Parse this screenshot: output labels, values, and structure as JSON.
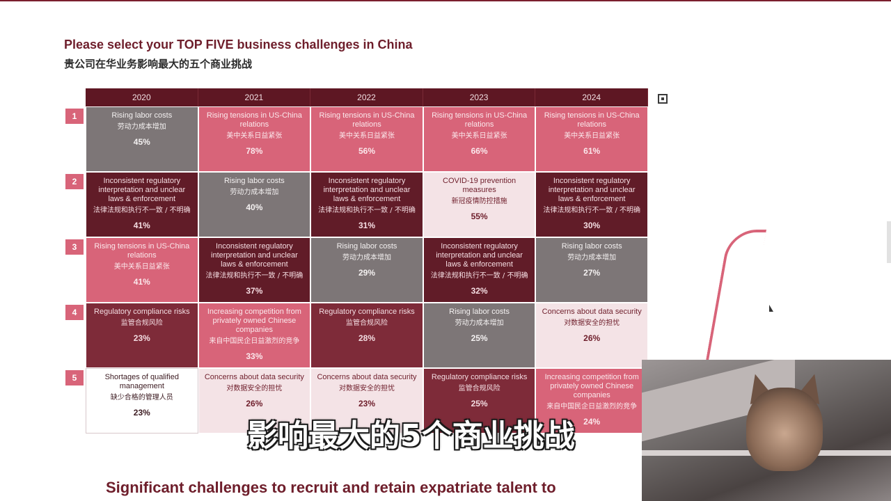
{
  "slide": {
    "title": "Please select your TOP FIVE business challenges in China",
    "subtitle": "贵公司在华业务影响最大的五个商业挑战",
    "years": [
      "2020",
      "2021",
      "2022",
      "2023",
      "2024"
    ],
    "ranks": [
      "1",
      "2",
      "3",
      "4",
      "5"
    ],
    "rows": [
      [
        {
          "en": "Rising labor costs",
          "zh": "劳动力成本增加",
          "pct": "45%",
          "tone": "gray"
        },
        {
          "en": "Rising tensions in US-China relations",
          "zh": "美中关系日益紧张",
          "pct": "78%",
          "tone": "pink"
        },
        {
          "en": "Rising tensions in US-China relations",
          "zh": "美中关系日益紧张",
          "pct": "56%",
          "tone": "pink"
        },
        {
          "en": "Rising tensions in US-China relations",
          "zh": "美中关系日益紧张",
          "pct": "66%",
          "tone": "pink"
        },
        {
          "en": "Rising tensions in US-China relations",
          "zh": "美中关系日益紧张",
          "pct": "61%",
          "tone": "pink"
        }
      ],
      [
        {
          "en": "Inconsistent regulatory interpretation and unclear laws & enforcement",
          "zh": "法律法规和执行不一致 / 不明确",
          "pct": "41%",
          "tone": "dark"
        },
        {
          "en": "Rising labor costs",
          "zh": "劳动力成本增加",
          "pct": "40%",
          "tone": "gray"
        },
        {
          "en": "Inconsistent regulatory interpretation and unclear laws & enforcement",
          "zh": "法律法规和执行不一致 / 不明确",
          "pct": "31%",
          "tone": "dark"
        },
        {
          "en": "COVID-19 prevention measures",
          "zh": "新冠疫情防控措施",
          "pct": "55%",
          "tone": "light"
        },
        {
          "en": "Inconsistent regulatory interpretation and unclear laws & enforcement",
          "zh": "法律法规和执行不一致 / 不明确",
          "pct": "30%",
          "tone": "dark"
        }
      ],
      [
        {
          "en": "Rising tensions in US-China relations",
          "zh": "美中关系日益紧张",
          "pct": "41%",
          "tone": "pink"
        },
        {
          "en": "Inconsistent regulatory interpretation and unclear laws & enforcement",
          "zh": "法律法规和执行不一致 / 不明确",
          "pct": "37%",
          "tone": "dark"
        },
        {
          "en": "Rising labor costs",
          "zh": "劳动力成本增加",
          "pct": "29%",
          "tone": "gray"
        },
        {
          "en": "Inconsistent regulatory interpretation and unclear laws & enforcement",
          "zh": "法律法规和执行不一致 / 不明确",
          "pct": "32%",
          "tone": "dark"
        },
        {
          "en": "Rising labor costs",
          "zh": "劳动力成本增加",
          "pct": "27%",
          "tone": "gray"
        }
      ],
      [
        {
          "en": "Regulatory compliance risks",
          "zh": "监管合规风险",
          "pct": "23%",
          "tone": "mid"
        },
        {
          "en": "Increasing competition from privately owned Chinese companies",
          "zh": "来自中国民企日益激烈的竞争",
          "pct": "33%",
          "tone": "pink"
        },
        {
          "en": "Regulatory compliance risks",
          "zh": "监管合规风险",
          "pct": "28%",
          "tone": "mid"
        },
        {
          "en": "Rising labor costs",
          "zh": "劳动力成本增加",
          "pct": "25%",
          "tone": "gray"
        },
        {
          "en": "Concerns about data security",
          "zh": "对数据安全的担忧",
          "pct": "26%",
          "tone": "light"
        }
      ],
      [
        {
          "en": "Shortages of qualified management",
          "zh": "缺少合格的管理人员",
          "pct": "23%",
          "tone": "white"
        },
        {
          "en": "Concerns about data security",
          "zh": "对数据安全的担忧",
          "pct": "26%",
          "tone": "light"
        },
        {
          "en": "Concerns about data security",
          "zh": "对数据安全的担忧",
          "pct": "23%",
          "tone": "light"
        },
        {
          "en": "Regulatory compliance risks",
          "zh": "监管合规风险",
          "pct": "25%",
          "tone": "mid"
        },
        {
          "en": "Increasing competition from privately owned Chinese companies",
          "zh": "来自中国民企日益激烈的竞争",
          "pct": "24%",
          "tone": "pink"
        }
      ]
    ],
    "next_title": "Significant challenges to recruit and retain expatriate talent to"
  },
  "caption": "影响最大的5个商业挑战",
  "icons": {
    "expand": "expand-icon",
    "cursor": "cursor-icon"
  },
  "colors": {
    "accent": "#6e1e2b",
    "pink": "#d86479",
    "gray": "#7d7677",
    "dark": "#611c28",
    "light": "#f4e3e6"
  }
}
